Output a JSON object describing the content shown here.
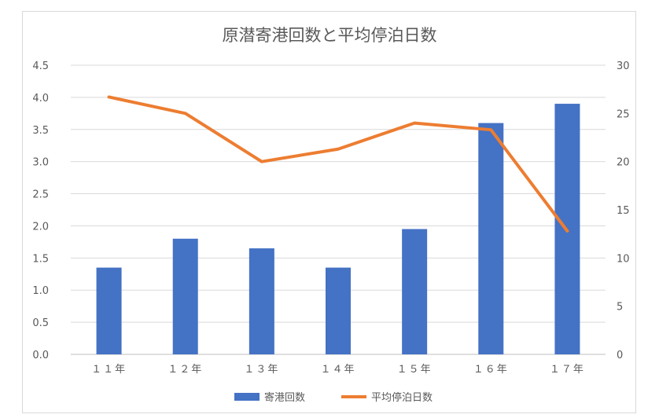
{
  "chart_data": {
    "type": "bar+line",
    "title": "原潜寄港回数と平均停泊日数",
    "categories": [
      "１１年",
      "１２年",
      "１３年",
      "１４年",
      "１５年",
      "１６年",
      "１７年"
    ],
    "series": [
      {
        "name": "寄港回数",
        "type": "bar",
        "axis": "left",
        "color": "#4472C4",
        "values": [
          1.35,
          1.8,
          1.65,
          1.35,
          1.95,
          3.6,
          3.9
        ]
      },
      {
        "name": "平均停泊日数",
        "type": "line",
        "axis": "right",
        "color": "#ED7D31",
        "values": [
          26.7,
          25.0,
          20.0,
          21.3,
          24.0,
          23.3,
          12.8
        ]
      }
    ],
    "y_left": {
      "ylim": [
        0,
        4.5
      ],
      "ticks": [
        "0.0",
        "0.5",
        "1.0",
        "1.5",
        "2.0",
        "2.5",
        "3.0",
        "3.5",
        "4.0",
        "4.5"
      ]
    },
    "y_right": {
      "ylim": [
        0,
        30
      ],
      "ticks": [
        "0",
        "5",
        "10",
        "15",
        "20",
        "25",
        "30"
      ]
    },
    "grid": true,
    "legend_position": "bottom"
  }
}
